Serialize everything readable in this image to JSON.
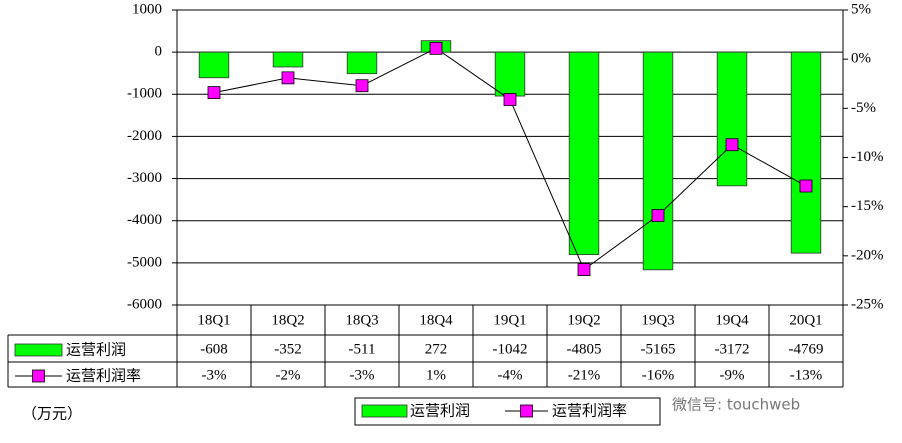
{
  "chart_data": {
    "type": "bar",
    "categories": [
      "18Q1",
      "18Q2",
      "18Q3",
      "18Q4",
      "19Q1",
      "19Q2",
      "19Q3",
      "19Q4",
      "20Q1"
    ],
    "series": [
      {
        "name": "运营利润",
        "type": "bar",
        "color": "#00ff00",
        "values": [
          -608,
          -352,
          -511,
          272,
          -1042,
          -4805,
          -5165,
          -3172,
          -4769
        ]
      },
      {
        "name": "运营利润率",
        "type": "line",
        "color": "#ff00ff",
        "axis": "y2",
        "values": [
          -3.4,
          -1.9,
          -2.7,
          1.1,
          -4.1,
          -21.4,
          -15.9,
          -8.7,
          -12.9
        ],
        "value_labels": [
          "-3%",
          "-2%",
          "-3%",
          "1%",
          "-4%",
          "-21%",
          "-16%",
          "-9%",
          "-13%"
        ]
      }
    ],
    "ylim": [
      -6000,
      1000
    ],
    "yticks": [
      -6000,
      -5000,
      -4000,
      -3000,
      -2000,
      -1000,
      0,
      1000
    ],
    "y2lim": [
      -25,
      5
    ],
    "y2ticks": [
      {
        "value": -25,
        "label": "-25%"
      },
      {
        "value": -20,
        "label": "-20%"
      },
      {
        "value": -15,
        "label": "-15%"
      },
      {
        "value": -10,
        "label": "-10%"
      },
      {
        "value": -5,
        "label": "-5%"
      },
      {
        "value": 0,
        "label": "0%"
      },
      {
        "value": 5,
        "label": "5%"
      }
    ],
    "grid": true,
    "unit_label": "（万元）",
    "watermark": "微信号: touchweb"
  }
}
